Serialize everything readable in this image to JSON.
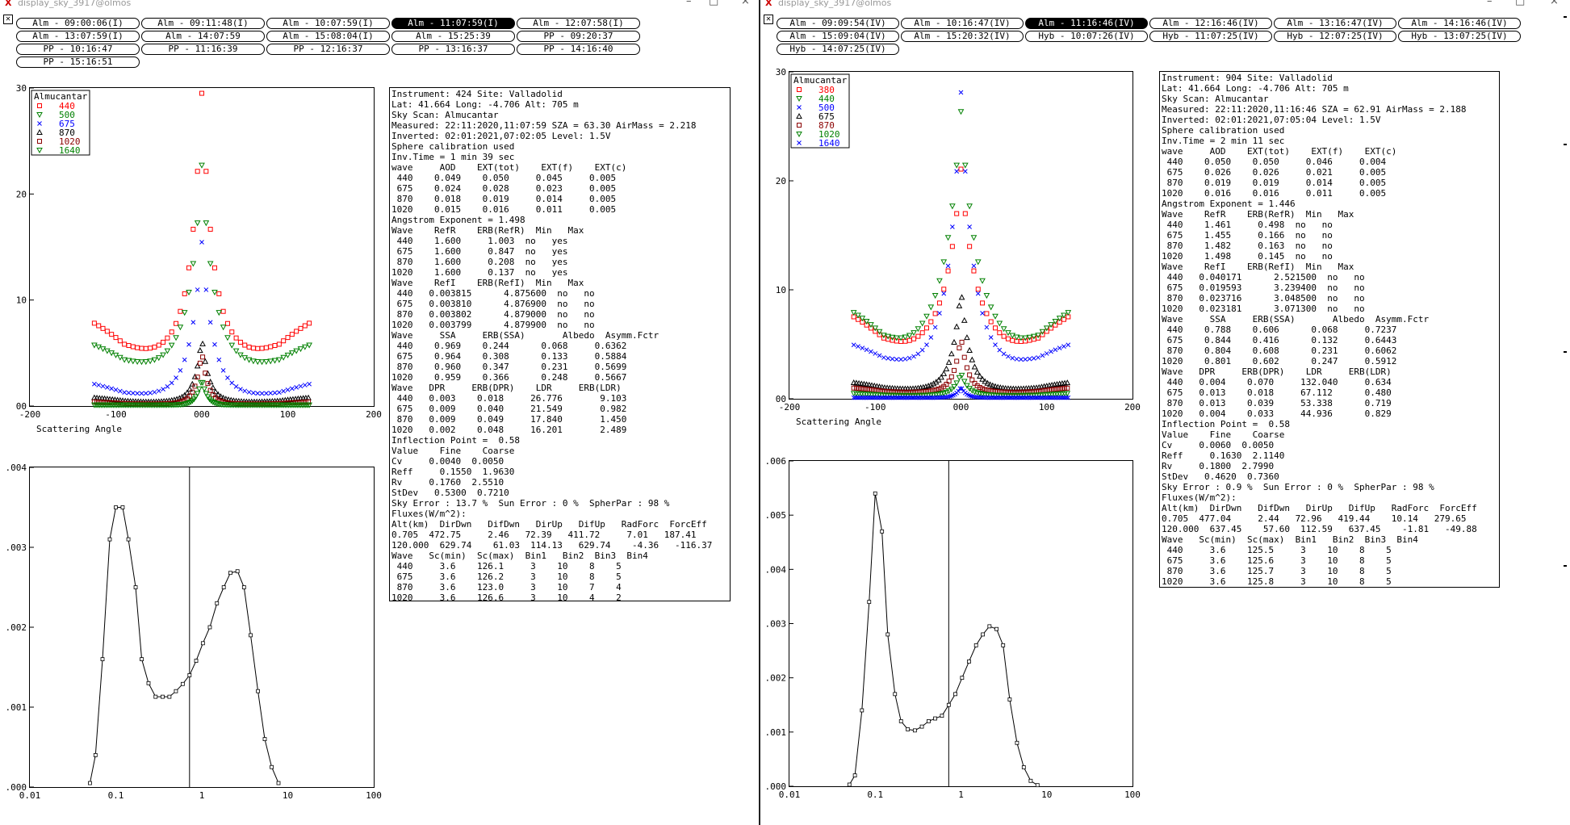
{
  "windows": [
    {
      "id": "A",
      "title": "display_sky_3917@olmos",
      "buttons": [
        {
          "label": "Alm - 09:00:06(I)",
          "selected": false
        },
        {
          "label": "Alm - 09:11:48(I)",
          "selected": false
        },
        {
          "label": "Alm - 10:07:59(I)",
          "selected": false
        },
        {
          "label": "Alm - 11:07:59(I)",
          "selected": true
        },
        {
          "label": "Alm - 12:07:58(I)",
          "selected": false
        },
        {
          "label": "Alm - 13:07:59(I)",
          "selected": false
        },
        {
          "label": "Alm - 14:07:59",
          "selected": false
        },
        {
          "label": "Alm - 15:08:04(I)",
          "selected": false
        },
        {
          "label": "Alm - 15:25:39",
          "selected": false
        },
        {
          "label": "PP - 09:20:37",
          "selected": false
        },
        {
          "label": "PP - 10:16:47",
          "selected": false
        },
        {
          "label": "PP - 11:16:39",
          "selected": false
        },
        {
          "label": "PP - 12:16:37",
          "selected": false
        },
        {
          "label": "PP - 13:16:37",
          "selected": false
        },
        {
          "label": "PP - 14:16:40",
          "selected": false
        },
        {
          "label": "PP - 15:16:51",
          "selected": false
        }
      ],
      "sky_plot": {
        "legend_title": "Almucantar",
        "legend": [
          {
            "label": "440",
            "color": "#ff0000",
            "marker": "square"
          },
          {
            "label": "500",
            "color": "#008000",
            "marker": "tri-down"
          },
          {
            "label": "675",
            "color": "#0000ff",
            "marker": "cross"
          },
          {
            "label": "870",
            "color": "#000000",
            "marker": "tri-up"
          },
          {
            "label": "1020",
            "color": "#8b0000",
            "marker": "square"
          },
          {
            "label": "1640",
            "color": "#008000",
            "marker": "tri-down"
          }
        ],
        "y_ticks": [
          "30",
          "20",
          "10",
          "00"
        ],
        "x_ticks": [
          "-200",
          "-100",
          "000",
          "100",
          "200"
        ],
        "xlabel": "Scattering Angle"
      },
      "size_plot": {
        "y_ticks": [
          ".004",
          ".003",
          ".002",
          ".001",
          ".000"
        ],
        "x_ticks": [
          "0.01",
          "0.1",
          "1",
          "10",
          "100"
        ],
        "points": [
          [
            0.05,
            5e-05
          ],
          [
            0.058,
            0.0004
          ],
          [
            0.07,
            0.0016
          ],
          [
            0.085,
            0.0031
          ],
          [
            0.1,
            0.0035
          ],
          [
            0.12,
            0.0035
          ],
          [
            0.14,
            0.0031
          ],
          [
            0.17,
            0.0025
          ],
          [
            0.2,
            0.0016
          ],
          [
            0.24,
            0.0013
          ],
          [
            0.29,
            0.00113
          ],
          [
            0.35,
            0.00113
          ],
          [
            0.42,
            0.00113
          ],
          [
            0.5,
            0.0012
          ],
          [
            0.6,
            0.00129
          ],
          [
            0.72,
            0.0014
          ],
          [
            0.86,
            0.00158
          ],
          [
            1.03,
            0.0018
          ],
          [
            1.24,
            0.002
          ],
          [
            1.5,
            0.0023
          ],
          [
            1.8,
            0.0025
          ],
          [
            2.15,
            0.00268
          ],
          [
            2.6,
            0.0027
          ],
          [
            3.1,
            0.0025
          ],
          [
            3.7,
            0.0019
          ],
          [
            4.5,
            0.0012
          ],
          [
            5.4,
            0.0006
          ],
          [
            6.5,
            0.00025
          ],
          [
            7.8,
            5e-05
          ]
        ],
        "vline": 0.72
      },
      "info_lines": [
        "Instrument: 424 Site: Valladolid",
        "Lat: 41.664 Long: -4.706 Alt: 705 m",
        "Sky Scan: Almucantar",
        "Measured: 22:11:2020,11:07:59 SZA = 63.30 AirMass = 2.218",
        "Inverted: 02:01:2021,07:02:05 Level: 1.5V",
        "Sphere calibration used",
        "Inv.Time = 1 min 39 sec",
        "wave     AOD    EXT(tot)    EXT(f)    EXT(c)",
        " 440    0.049    0.050     0.045     0.005",
        " 675    0.024    0.028     0.023     0.005",
        " 870    0.018    0.019     0.014     0.005",
        "1020    0.015    0.016     0.011     0.005",
        "Angstrom Exponent = 1.498",
        "Wave    RefR    ERB(RefR)  Min   Max",
        " 440    1.600     1.003  no   yes",
        " 675    1.600     0.847  no   yes",
        " 870    1.600     0.208  no   yes",
        "1020    1.600     0.137  no   yes",
        "Wave    RefI    ERB(RefI)  Min   Max",
        " 440   0.003815      4.875600  no   no",
        " 675   0.003810      4.876900  no   no",
        " 870   0.003802      4.879000  no   no",
        "1020   0.003799      4.879900  no   no",
        "Wave     SSA     ERB(SSA)       Albedo  Asymm.Fctr",
        " 440    0.969    0.244      0.068     0.6362",
        " 675    0.964    0.308      0.133     0.5884",
        " 870    0.960    0.347      0.231     0.5699",
        "1020    0.959    0.366      0.248     0.5667",
        "Wave   DPR     ERB(DPR)    LDR     ERB(LDR)",
        " 440   0.003    0.018     26.776       9.103",
        " 675   0.009    0.040     21.549       0.982",
        " 870   0.009    0.049     17.840       1.450",
        "1020   0.002    0.048     16.201       2.489",
        "Inflection Point =  0.58",
        "Value    Fine    Coarse",
        "Cv     0.0040  0.0050",
        "Reff     0.1550  1.9630",
        "Rv     0.1760  2.5510",
        "StDev   0.5300  0.7210",
        "Sky Error : 13.7 %  Sun Error : 0 %  SpherPar : 98 %",
        "Fluxes(W/m^2):",
        "Alt(km)  DirDwn   DifDwn   DirUp   DifUp   RadForc  ForcEff",
        "0.705  472.75     2.46   72.39   411.72     7.01   187.41",
        "120.000  629.74    61.03  114.13   629.74    -4.36   -116.37",
        "Wave   Sc(min)  Sc(max)  Bin1   Bin2  Bin3  Bin4",
        " 440     3.6    126.1     3    10    8    5",
        " 675     3.6    126.2     3    10    8    5",
        " 870     3.6    123.0     3    10    7    4",
        "1020     3.6    126.6     3    10    4    2"
      ]
    },
    {
      "id": "B",
      "title": "display_sky_3917@olmos",
      "buttons": [
        {
          "label": "Alm - 09:09:54(IV)",
          "selected": false
        },
        {
          "label": "Alm - 10:16:47(IV)",
          "selected": false
        },
        {
          "label": "Alm - 11:16:46(IV)",
          "selected": true
        },
        {
          "label": "Alm - 12:16:46(IV)",
          "selected": false
        },
        {
          "label": "Alm - 13:16:47(IV)",
          "selected": false
        },
        {
          "label": "Alm - 14:16:46(IV)",
          "selected": false
        },
        {
          "label": "Alm - 15:09:04(IV)",
          "selected": false
        },
        {
          "label": "Alm - 15:20:32(IV)",
          "selected": false
        },
        {
          "label": "Hyb - 10:07:26(IV)",
          "selected": false
        },
        {
          "label": "Hyb - 11:07:25(IV)",
          "selected": false
        },
        {
          "label": "Hyb - 12:07:25(IV)",
          "selected": false
        },
        {
          "label": "Hyb - 13:07:25(IV)",
          "selected": false
        },
        {
          "label": "Hyb - 14:07:25(IV)",
          "selected": false
        }
      ],
      "sky_plot": {
        "legend_title": "Almucantar",
        "legend": [
          {
            "label": "380",
            "color": "#ff0000",
            "marker": "square"
          },
          {
            "label": "440",
            "color": "#008000",
            "marker": "tri-down"
          },
          {
            "label": "500",
            "color": "#0000ff",
            "marker": "cross"
          },
          {
            "label": "675",
            "color": "#000000",
            "marker": "tri-up"
          },
          {
            "label": "870",
            "color": "#8b0000",
            "marker": "square"
          },
          {
            "label": "1020",
            "color": "#008000",
            "marker": "tri-down"
          },
          {
            "label": "1640",
            "color": "#0000ff",
            "marker": "cross"
          }
        ],
        "y_ticks": [
          "30",
          "20",
          "10",
          "00"
        ],
        "x_ticks": [
          "-200",
          "-100",
          "000",
          "100",
          "200"
        ],
        "xlabel": "Scattering Angle"
      },
      "size_plot": {
        "y_ticks": [
          ".006",
          ".005",
          ".004",
          ".003",
          ".002",
          ".001",
          ".000"
        ],
        "x_ticks": [
          "0.01",
          "0.1",
          "1",
          "10",
          "100"
        ],
        "points": [
          [
            0.05,
            3e-05
          ],
          [
            0.058,
            0.0002
          ],
          [
            0.07,
            0.0014
          ],
          [
            0.085,
            0.0034
          ],
          [
            0.1,
            0.0054
          ],
          [
            0.12,
            0.0047
          ],
          [
            0.14,
            0.0028
          ],
          [
            0.17,
            0.0017
          ],
          [
            0.2,
            0.0012
          ],
          [
            0.24,
            0.00105
          ],
          [
            0.29,
            0.00103
          ],
          [
            0.35,
            0.0011
          ],
          [
            0.42,
            0.0012
          ],
          [
            0.5,
            0.00125
          ],
          [
            0.6,
            0.0013
          ],
          [
            0.72,
            0.0015
          ],
          [
            0.86,
            0.0017
          ],
          [
            1.03,
            0.002
          ],
          [
            1.24,
            0.0023
          ],
          [
            1.5,
            0.0026
          ],
          [
            1.8,
            0.0028
          ],
          [
            2.15,
            0.00295
          ],
          [
            2.6,
            0.0029
          ],
          [
            3.1,
            0.0026
          ],
          [
            3.7,
            0.0016
          ],
          [
            4.5,
            0.0008
          ],
          [
            5.4,
            0.00035
          ],
          [
            6.5,
            0.0001
          ],
          [
            7.8,
            2e-05
          ]
        ],
        "vline": 0.72
      },
      "info_lines": [
        "Instrument: 904 Site: Valladolid",
        "Lat: 41.664 Long: -4.706 Alt: 705 m",
        "Sky Scan: Almucantar",
        "Measured: 22:11:2020,11:16:46 SZA = 62.91 AirMass = 2.188",
        "Inverted: 02:01:2021,07:05:04 Level: 1.5V",
        "Sphere calibration used",
        "Inv.Time = 2 min 11 sec",
        "wave     AOD    EXT(tot)    EXT(f)    EXT(c)",
        " 440    0.050    0.050     0.046     0.004",
        " 675    0.026    0.026     0.021     0.005",
        " 870    0.019    0.019     0.014     0.005",
        "1020    0.016    0.016     0.011     0.005",
        "Angstrom Exponent = 1.446",
        "Wave    RefR    ERB(RefR)  Min   Max",
        " 440    1.461     0.498  no   no",
        " 675    1.455     0.166  no   no",
        " 870    1.482     0.163  no   no",
        "1020    1.498     0.145  no   no",
        "Wave    RefI    ERB(RefI)  Min   Max",
        " 440   0.040171      2.521500  no   no",
        " 675   0.019593      3.239400  no   no",
        " 870   0.023716      3.048500  no   no",
        "1020   0.023181      3.071300  no   no",
        "Wave     SSA     ERB(SSA)       Albedo  Asymm.Fctr",
        " 440    0.788    0.606      0.068     0.7237",
        " 675    0.844    0.416      0.132     0.6443",
        " 870    0.804    0.608      0.231     0.6062",
        "1020    0.801    0.602      0.247     0.5912",
        "Wave   DPR     ERB(DPR)    LDR     ERB(LDR)",
        " 440   0.004    0.070     132.040     0.634",
        " 675   0.013    0.018     67.112      0.480",
        " 870   0.013    0.039     53.338      0.719",
        "1020   0.004    0.033     44.936      0.829",
        "Inflection Point =  0.58",
        "Value    Fine    Coarse",
        "Cv     0.0060  0.0050",
        "Reff     0.1630  2.1140",
        "Rv     0.1800  2.7990",
        "StDev   0.4620  0.7360",
        "Sky Error : 0.9 %  Sun Error : 0 %  SpherPar : 98 %",
        "Fluxes(W/m^2):",
        "Alt(km)  DirDwn   DifDwn   DirUp   DifUp   RadForc  ForcEff",
        "0.705  477.04     2.44   72.96   419.44    10.14   279.65",
        "120.000  637.45    57.60  112.59   637.45    -1.81   -49.88",
        "Wave   Sc(min)  Sc(max)  Bin1   Bin2  Bin3  Bin4",
        " 440     3.6    125.5     3    10    8    5",
        " 675     3.6    125.6     3    10    8    5",
        " 870     3.6    125.7     3    10    8    5",
        "1020     3.6    125.8     3    10    8    5"
      ]
    }
  ]
}
